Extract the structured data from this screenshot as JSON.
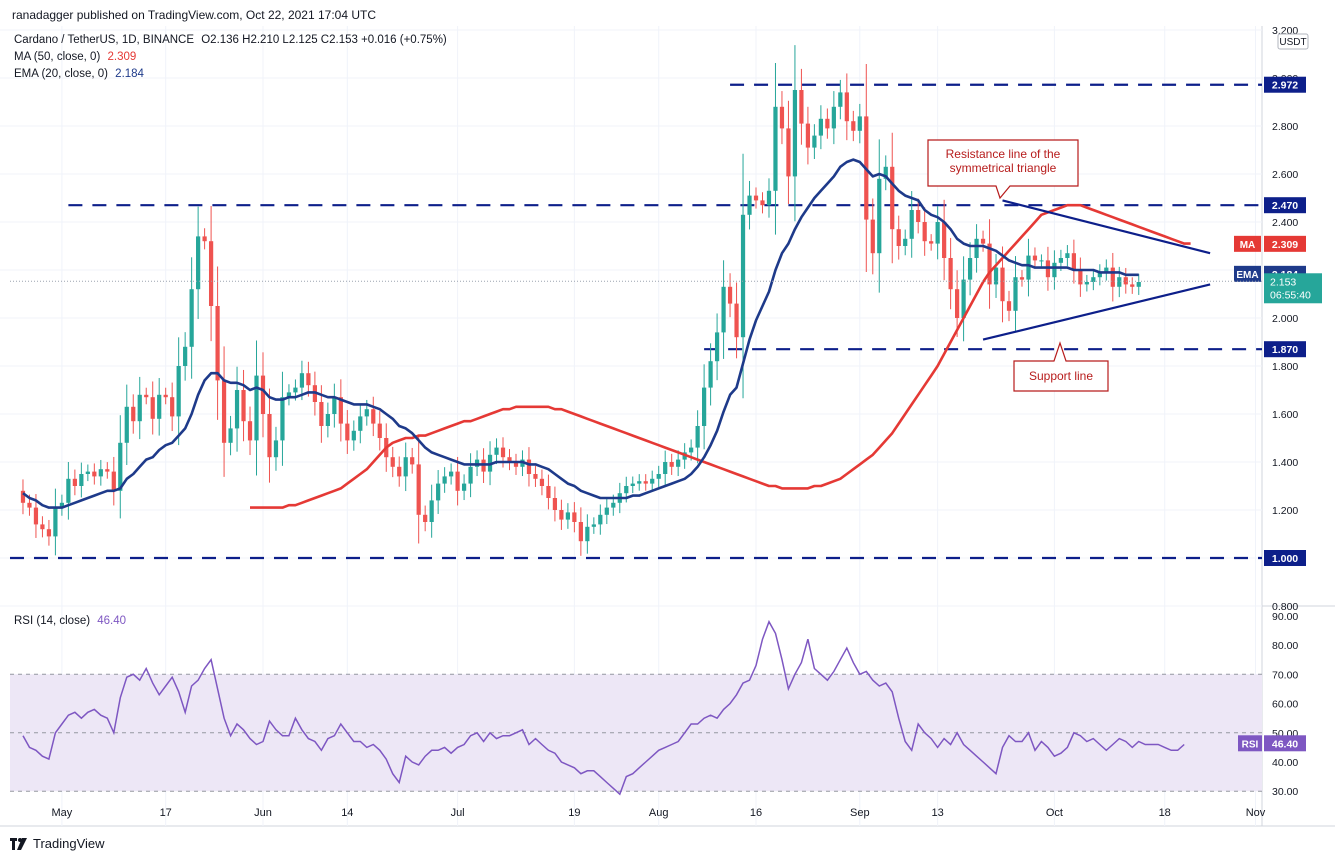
{
  "header": {
    "published": "ranadagger published on TradingView.com, Oct 22, 2021 17:04 UTC"
  },
  "legend": {
    "symbol": "Cardano / TetherUS, 1D, BINANCE",
    "ohlc": "O2.136  H2.210  L2.125  C2.153  +0.016 (+0.75%)",
    "ma_label": "MA (50, close, 0)",
    "ma_value": "2.309",
    "ema_label": "EMA (20, close, 0)",
    "ema_value": "2.184",
    "rsi_label": "RSI (14, close)",
    "rsi_value": "46.40"
  },
  "footer": {
    "brand": "TradingView"
  },
  "colors": {
    "up": "#26a69a",
    "down": "#ef5350",
    "ema": "#1e3a8a",
    "ma": "#e53935",
    "level": "#0d1f8a",
    "rsi": "#7e57c2",
    "rsi_band": "#ede7f6"
  },
  "chart_data": [
    {
      "type": "candlestick",
      "title": "Cardano / TetherUS, 1D, BINANCE",
      "unit": "USDT",
      "ylim": [
        0.8,
        3.2
      ],
      "yticks": [
        0.8,
        1.0,
        1.2,
        1.4,
        1.6,
        1.8,
        2.0,
        2.2,
        2.4,
        2.6,
        2.8,
        3.0,
        3.2
      ],
      "ytick_labels": [
        "0.800",
        "1.000",
        "1.200",
        "1.400",
        "1.600",
        "1.800",
        "2.000",
        "2.200",
        "2.400",
        "2.600",
        "2.800",
        "3.000",
        "3.200"
      ],
      "x_labels": [
        {
          "label": "May",
          "date": "2021-05-01"
        },
        {
          "label": "17",
          "date": "2021-05-17"
        },
        {
          "label": "Jun",
          "date": "2021-06-01"
        },
        {
          "label": "14",
          "date": "2021-06-14"
        },
        {
          "label": "Jul",
          "date": "2021-07-01"
        },
        {
          "label": "19",
          "date": "2021-07-19"
        },
        {
          "label": "Aug",
          "date": "2021-08-01"
        },
        {
          "label": "16",
          "date": "2021-08-16"
        },
        {
          "label": "Sep",
          "date": "2021-09-01"
        },
        {
          "label": "13",
          "date": "2021-09-13"
        },
        {
          "label": "Oct",
          "date": "2021-10-01"
        },
        {
          "label": "18",
          "date": "2021-10-18"
        },
        {
          "label": "Nov",
          "date": "2021-11-01"
        }
      ],
      "x_range": [
        "2021-04-23",
        "2021-11-02"
      ],
      "close": [
        1.23,
        1.21,
        1.14,
        1.12,
        1.09,
        1.21,
        1.23,
        1.33,
        1.3,
        1.35,
        1.36,
        1.34,
        1.37,
        1.36,
        1.28,
        1.48,
        1.63,
        1.57,
        1.68,
        1.67,
        1.58,
        1.68,
        1.67,
        1.59,
        1.8,
        1.88,
        2.12,
        2.34,
        2.32,
        2.05,
        1.74,
        1.48,
        1.54,
        1.7,
        1.57,
        1.49,
        1.76,
        1.6,
        1.42,
        1.49,
        1.67,
        1.69,
        1.71,
        1.77,
        1.72,
        1.65,
        1.55,
        1.6,
        1.67,
        1.56,
        1.49,
        1.53,
        1.59,
        1.62,
        1.56,
        1.5,
        1.42,
        1.38,
        1.34,
        1.42,
        1.39,
        1.18,
        1.15,
        1.24,
        1.31,
        1.34,
        1.36,
        1.28,
        1.31,
        1.38,
        1.41,
        1.36,
        1.43,
        1.46,
        1.42,
        1.4,
        1.38,
        1.41,
        1.35,
        1.33,
        1.3,
        1.25,
        1.2,
        1.16,
        1.19,
        1.15,
        1.07,
        1.13,
        1.14,
        1.18,
        1.21,
        1.23,
        1.27,
        1.3,
        1.31,
        1.32,
        1.31,
        1.33,
        1.35,
        1.4,
        1.38,
        1.41,
        1.44,
        1.46,
        1.55,
        1.71,
        1.82,
        1.94,
        2.13,
        2.06,
        1.92,
        2.43,
        2.51,
        2.49,
        2.47,
        2.53,
        2.88,
        2.79,
        2.59,
        2.95,
        2.81,
        2.71,
        2.76,
        2.83,
        2.79,
        2.88,
        2.94,
        2.82,
        2.78,
        2.84,
        2.41,
        2.27,
        2.58,
        2.63,
        2.37,
        2.3,
        2.33,
        2.45,
        2.4,
        2.32,
        2.31,
        2.4,
        2.25,
        2.12,
        2.0,
        2.16,
        2.25,
        2.33,
        2.31,
        2.14,
        2.21,
        2.07,
        2.03,
        2.17,
        2.16,
        2.26,
        2.24,
        2.24,
        2.17,
        2.23,
        2.25,
        2.27,
        2.2,
        2.14,
        2.15,
        2.17,
        2.19,
        2.21,
        2.13,
        2.17,
        2.14,
        2.13,
        2.15
      ],
      "ema_20": [
        1.27,
        1.25,
        1.24,
        1.22,
        1.21,
        1.21,
        1.21,
        1.22,
        1.23,
        1.24,
        1.25,
        1.26,
        1.27,
        1.28,
        1.28,
        1.29,
        1.33,
        1.35,
        1.38,
        1.41,
        1.42,
        1.45,
        1.47,
        1.48,
        1.51,
        1.54,
        1.6,
        1.68,
        1.74,
        1.77,
        1.77,
        1.74,
        1.73,
        1.73,
        1.72,
        1.7,
        1.71,
        1.7,
        1.67,
        1.66,
        1.66,
        1.67,
        1.67,
        1.68,
        1.69,
        1.69,
        1.68,
        1.67,
        1.67,
        1.66,
        1.65,
        1.64,
        1.64,
        1.64,
        1.63,
        1.62,
        1.6,
        1.58,
        1.55,
        1.54,
        1.52,
        1.49,
        1.46,
        1.44,
        1.43,
        1.42,
        1.41,
        1.4,
        1.39,
        1.39,
        1.39,
        1.39,
        1.39,
        1.4,
        1.4,
        1.4,
        1.4,
        1.4,
        1.39,
        1.39,
        1.38,
        1.37,
        1.35,
        1.33,
        1.31,
        1.3,
        1.28,
        1.27,
        1.26,
        1.25,
        1.25,
        1.25,
        1.25,
        1.25,
        1.26,
        1.26,
        1.27,
        1.28,
        1.29,
        1.3,
        1.31,
        1.32,
        1.33,
        1.35,
        1.38,
        1.42,
        1.47,
        1.53,
        1.61,
        1.68,
        1.71,
        1.81,
        1.91,
        1.99,
        2.05,
        2.11,
        2.2,
        2.27,
        2.31,
        2.37,
        2.42,
        2.46,
        2.5,
        2.53,
        2.56,
        2.59,
        2.63,
        2.65,
        2.66,
        2.65,
        2.62,
        2.59,
        2.6,
        2.59,
        2.56,
        2.53,
        2.51,
        2.5,
        2.49,
        2.45,
        2.43,
        2.42,
        2.4,
        2.37,
        2.33,
        2.31,
        2.3,
        2.3,
        2.3,
        2.29,
        2.28,
        2.26,
        2.24,
        2.23,
        2.22,
        2.22,
        2.21,
        2.21,
        2.21,
        2.21,
        2.21,
        2.21,
        2.2,
        2.2,
        2.2,
        2.2,
        2.19,
        2.19,
        2.19,
        2.19,
        2.18,
        2.18,
        2.18
      ],
      "ma_50": [
        1.21,
        1.21,
        1.21,
        1.21,
        1.21,
        1.21,
        1.22,
        1.22,
        1.23,
        1.24,
        1.25,
        1.26,
        1.27,
        1.28,
        1.29,
        1.31,
        1.33,
        1.35,
        1.37,
        1.4,
        1.43,
        1.46,
        1.48,
        1.49,
        1.5,
        1.5,
        1.51,
        1.51,
        1.52,
        1.53,
        1.54,
        1.55,
        1.56,
        1.57,
        1.57,
        1.58,
        1.59,
        1.6,
        1.61,
        1.62,
        1.62,
        1.63,
        1.63,
        1.63,
        1.63,
        1.63,
        1.63,
        1.62,
        1.62,
        1.61,
        1.6,
        1.59,
        1.58,
        1.57,
        1.56,
        1.55,
        1.54,
        1.53,
        1.52,
        1.51,
        1.5,
        1.49,
        1.48,
        1.47,
        1.46,
        1.45,
        1.44,
        1.43,
        1.42,
        1.41,
        1.4,
        1.39,
        1.38,
        1.37,
        1.36,
        1.35,
        1.34,
        1.33,
        1.32,
        1.31,
        1.3,
        1.3,
        1.29,
        1.29,
        1.29,
        1.29,
        1.29,
        1.3,
        1.3,
        1.31,
        1.32,
        1.33,
        1.35,
        1.37,
        1.39,
        1.41,
        1.43,
        1.46,
        1.49,
        1.52,
        1.56,
        1.6,
        1.64,
        1.68,
        1.72,
        1.76,
        1.8,
        1.85,
        1.9,
        1.95,
        2.0,
        2.05,
        2.1,
        2.15,
        2.19,
        2.22,
        2.25,
        2.28,
        2.31,
        2.34,
        2.37,
        2.4,
        2.43,
        2.44,
        2.45,
        2.46,
        2.47,
        2.47,
        2.47,
        2.46,
        2.45,
        2.44,
        2.43,
        2.42,
        2.41,
        2.4,
        2.39,
        2.38,
        2.37,
        2.36,
        2.35,
        2.34,
        2.33,
        2.32,
        2.31,
        2.31
      ],
      "ma_50_start_index": 35,
      "levels": [
        {
          "label": "2.972",
          "value": 2.972
        },
        {
          "label": "2.470",
          "value": 2.47
        },
        {
          "label": "1.870",
          "value": 1.87
        },
        {
          "label": "1.000",
          "value": 1.0
        }
      ],
      "price_tags": [
        {
          "name": "MA",
          "label": "2.309",
          "value": 2.309
        },
        {
          "name": "EMA",
          "label": "2.184",
          "value": 2.184
        },
        {
          "label": "2.153",
          "sub": "06:55:40",
          "value": 2.153
        }
      ],
      "trendlines": [
        {
          "name": "resistance",
          "from": [
            "2021-09-23",
            2.49
          ],
          "to": [
            "2021-10-25",
            2.27
          ]
        },
        {
          "name": "support",
          "from": [
            "2021-09-20",
            1.91
          ],
          "to": [
            "2021-10-25",
            2.14
          ]
        }
      ],
      "annotations": [
        {
          "text": "Resistance line of the symmetrical triangle"
        },
        {
          "text": "Support line"
        }
      ]
    },
    {
      "type": "line",
      "title": "RSI (14, close)",
      "ylim": [
        27,
        92
      ],
      "yticks": [
        30,
        40,
        50,
        60,
        70,
        80,
        90
      ],
      "ytick_labels": [
        "30.00",
        "40.00",
        "50.00",
        "60.00",
        "70.00",
        "80.00",
        "90.00"
      ],
      "band": [
        30,
        70
      ],
      "midline": 50,
      "current": {
        "label": "46.40",
        "value": 46.4
      },
      "values": [
        49,
        45,
        44,
        42,
        41,
        50,
        53,
        56,
        57,
        55,
        57,
        58,
        56,
        55,
        50,
        62,
        69,
        70,
        68,
        72,
        67,
        63,
        66,
        69,
        64,
        57,
        66,
        68,
        72,
        75,
        65,
        55,
        49,
        53,
        51,
        48,
        46,
        47,
        54,
        51,
        49,
        49,
        55,
        51,
        48,
        47,
        44,
        48,
        49,
        53,
        50,
        47,
        47,
        45,
        46,
        44,
        41,
        36,
        33,
        42,
        40,
        39,
        42,
        44,
        44,
        45,
        43,
        45,
        46,
        49,
        50,
        47,
        50,
        48,
        49,
        49,
        50,
        51,
        46,
        48,
        46,
        44,
        43,
        40,
        39,
        38,
        36,
        37,
        37,
        35,
        33,
        31,
        29,
        35,
        36,
        38,
        40,
        42,
        44,
        45,
        46,
        47,
        50,
        53,
        53,
        55,
        56,
        55,
        58,
        60,
        63,
        67,
        68,
        73,
        82,
        88,
        84,
        75,
        65,
        70,
        74,
        82,
        72,
        70,
        68,
        71,
        75,
        79,
        74,
        70,
        71,
        68,
        66,
        67,
        64,
        55,
        47,
        44,
        53,
        50,
        48,
        45,
        48,
        46,
        50,
        46,
        44,
        42,
        40,
        38,
        36,
        45,
        49,
        47,
        47,
        50,
        44,
        47,
        45,
        42,
        43,
        45,
        50,
        49,
        47,
        48,
        46,
        44,
        46,
        48,
        47,
        45,
        47,
        46,
        46,
        46,
        45,
        44,
        44,
        46
      ]
    }
  ]
}
